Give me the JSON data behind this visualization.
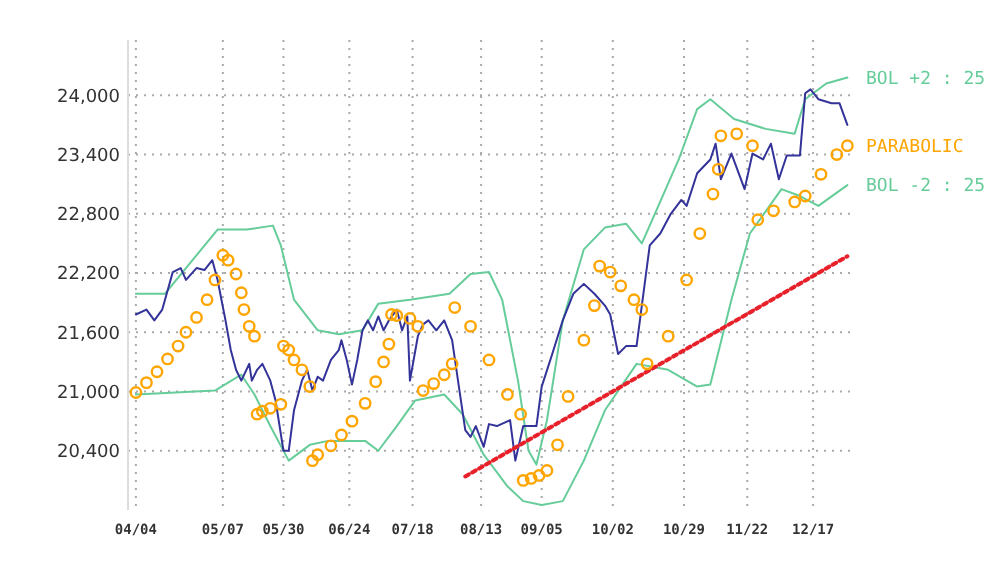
{
  "chart_data": {
    "type": "line",
    "xlim": [
      "--04-01",
      "--12-31"
    ],
    "ylim": [
      19800,
      24560
    ],
    "xticks": [
      {
        "value": "--04-04",
        "label": "04/04"
      },
      {
        "value": "--05-07",
        "label": "05/07"
      },
      {
        "value": "--05-30",
        "label": "05/30"
      },
      {
        "value": "--06-24",
        "label": "06/24"
      },
      {
        "value": "--07-18",
        "label": "07/18"
      },
      {
        "value": "--08-13",
        "label": "08/13"
      },
      {
        "value": "--09-05",
        "label": "09/05"
      },
      {
        "value": "--10-02",
        "label": "10/02"
      },
      {
        "value": "--10-29",
        "label": "10/29"
      },
      {
        "value": "--11-22",
        "label": "11/22"
      },
      {
        "value": "--12-17",
        "label": "12/17"
      }
    ],
    "yticks": [
      {
        "value": 20400,
        "label": "20,400"
      },
      {
        "value": 21000,
        "label": "21,000"
      },
      {
        "value": 21600,
        "label": "21,600"
      },
      {
        "value": 22200,
        "label": "22,200"
      },
      {
        "value": 22800,
        "label": "22,800"
      },
      {
        "value": 23400,
        "label": "23,400"
      },
      {
        "value": 24000,
        "label": "24,000"
      }
    ],
    "grid": true,
    "series": [
      {
        "color": "#66cc99",
        "name": "BOL +2 : 25",
        "x": [
          "--04-04",
          "--04-15",
          "--05-05",
          "--05-16",
          "--05-26",
          "--05-29",
          "--06-03",
          "--06-12",
          "--06-20",
          "--06-29",
          "--07-05",
          "--07-17",
          "--08-01",
          "--08-09",
          "--08-16",
          "--08-21",
          "--08-27",
          "--08-31",
          "--09-03",
          "--09-07",
          "--09-13",
          "--09-21",
          "--09-29",
          "--10-07",
          "--10-13",
          "--10-17",
          "--10-27",
          "--11-03",
          "--11-08",
          "--11-17",
          "--11-29",
          "--12-10",
          "--12-14",
          "--12-22",
          "--12-30"
        ],
        "values": [
          21990,
          21990,
          22640,
          22640,
          22680,
          22480,
          21930,
          21620,
          21580,
          21620,
          21890,
          21930,
          21990,
          22190,
          22210,
          21930,
          21110,
          20400,
          20260,
          20710,
          21720,
          22440,
          22660,
          22700,
          22500,
          22740,
          23350,
          23860,
          23960,
          23760,
          23660,
          23610,
          23960,
          24120,
          24180
        ]
      },
      {
        "color": "#66cc99",
        "name": "BOL -2 : 25",
        "x": [
          "--04-04",
          "--05-04",
          "--05-14",
          "--05-19",
          "--05-25",
          "--06-01",
          "--06-09",
          "--06-16",
          "--06-30",
          "--07-05",
          "--07-12",
          "--07-19",
          "--07-30",
          "--08-06",
          "--08-14",
          "--08-23",
          "--08-29",
          "--09-05",
          "--09-13",
          "--09-21",
          "--09-29",
          "--10-11",
          "--10-23",
          "--11-03",
          "--11-08",
          "--11-16",
          "--11-23",
          "--12-05",
          "--12-12",
          "--12-19",
          "--12-30"
        ],
        "values": [
          20970,
          21010,
          21170,
          20970,
          20650,
          20300,
          20460,
          20500,
          20500,
          20400,
          20650,
          20910,
          20970,
          20770,
          20360,
          20040,
          19890,
          19850,
          19890,
          20300,
          20810,
          21280,
          21220,
          21050,
          21070,
          21930,
          22600,
          23050,
          22980,
          22880,
          23090
        ]
      },
      {
        "color": "#333399",
        "x": [
          "--04-04",
          "--04-08",
          "--04-11",
          "--04-14",
          "--04-18",
          "--04-21",
          "--04-23",
          "--04-27",
          "--04-30",
          "--05-03",
          "--05-05",
          "--05-08",
          "--05-10",
          "--05-12",
          "--05-14",
          "--05-17",
          "--05-18",
          "--05-20",
          "--05-22",
          "--05-25",
          "--05-27",
          "--05-30",
          "--06-01",
          "--06-03",
          "--06-06",
          "--06-08",
          "--06-10",
          "--06-12",
          "--06-14",
          "--06-17",
          "--06-20",
          "--06-21",
          "--06-23",
          "--06-25",
          "--06-27",
          "--06-29",
          "--07-01",
          "--07-03",
          "--07-05",
          "--07-07",
          "--07-09",
          "--07-12",
          "--07-14",
          "--07-16",
          "--07-17",
          "--07-20",
          "--07-22",
          "--07-24",
          "--07-27",
          "--07-30",
          "--08-02",
          "--08-05",
          "--08-07",
          "--08-09",
          "--08-11",
          "--08-14",
          "--08-16",
          "--08-19",
          "--08-24",
          "--08-26",
          "--08-29",
          "--09-03",
          "--09-05",
          "--09-09",
          "--09-13",
          "--09-17",
          "--09-21",
          "--09-25",
          "--09-29",
          "--10-01",
          "--10-04",
          "--10-07",
          "--10-11",
          "--10-13",
          "--10-16",
          "--10-20",
          "--10-24",
          "--10-28",
          "--10-30",
          "--11-03",
          "--11-08",
          "--11-10",
          "--11-12",
          "--11-16",
          "--11-21",
          "--11-24",
          "--11-28",
          "--12-01",
          "--12-04",
          "--12-07",
          "--12-12",
          "--12-14",
          "--12-16",
          "--12-19",
          "--12-24",
          "--12-27",
          "--12-30"
        ],
        "values": [
          21780,
          21830,
          21720,
          21830,
          22210,
          22250,
          22130,
          22250,
          22230,
          22330,
          22130,
          21720,
          21420,
          21220,
          21110,
          21280,
          21110,
          21220,
          21280,
          21110,
          20910,
          20400,
          20400,
          20810,
          21110,
          21220,
          21010,
          21150,
          21110,
          21320,
          21420,
          21520,
          21320,
          21070,
          21320,
          21620,
          21720,
          21620,
          21760,
          21620,
          21720,
          21830,
          21620,
          21760,
          21110,
          21560,
          21680,
          21720,
          21620,
          21720,
          21520,
          20970,
          20610,
          20540,
          20650,
          20440,
          20670,
          20650,
          20710,
          20300,
          20650,
          20650,
          21050,
          21380,
          21720,
          21990,
          22090,
          21990,
          21870,
          21780,
          21380,
          21460,
          21460,
          21870,
          22480,
          22600,
          22800,
          22940,
          22880,
          23210,
          23350,
          23510,
          23150,
          23410,
          23050,
          23410,
          23350,
          23510,
          23150,
          23390,
          23390,
          24020,
          24060,
          23960,
          23920,
          23920,
          23700
        ]
      },
      {
        "color": "#e8202a",
        "line_style": "dotted",
        "x": [
          "--08-07",
          "--12-30"
        ],
        "values": [
          20140,
          22370
        ]
      },
      {
        "type": "scatter",
        "color": "#ffa500",
        "name": "PARABOLIC",
        "marker": "circle",
        "x": [
          "--04-04",
          "--04-08",
          "--04-12",
          "--04-16",
          "--04-20",
          "--04-23",
          "--04-27",
          "--05-01",
          "--05-04",
          "--05-07",
          "--05-09",
          "--05-12",
          "--05-14",
          "--05-15",
          "--05-17",
          "--05-19",
          "--05-20",
          "--05-22",
          "--05-25",
          "--05-29",
          "--05-30",
          "--06-01",
          "--06-03",
          "--06-06",
          "--06-09",
          "--06-10",
          "--06-12",
          "--06-17",
          "--06-21",
          "--06-25",
          "--06-30",
          "--07-04",
          "--07-07",
          "--07-09",
          "--07-10",
          "--07-12",
          "--07-17",
          "--07-20",
          "--07-22",
          "--07-26",
          "--07-30",
          "--08-02",
          "--08-03",
          "--08-09",
          "--08-16",
          "--08-23",
          "--08-28",
          "--08-29",
          "--09-01",
          "--09-04",
          "--09-07",
          "--09-11",
          "--09-15",
          "--09-21",
          "--09-25",
          "--09-27",
          "--10-01",
          "--10-05",
          "--10-10",
          "--10-13",
          "--10-15",
          "--10-23",
          "--10-30",
          "--11-04",
          "--11-09",
          "--11-11",
          "--11-12",
          "--11-18",
          "--11-24",
          "--11-26",
          "--12-02",
          "--12-10",
          "--12-14",
          "--12-20",
          "--12-26",
          "--12-30"
        ],
        "values": [
          20990,
          21090,
          21200,
          21330,
          21460,
          21600,
          21750,
          21930,
          22130,
          22380,
          22330,
          22190,
          22000,
          21830,
          21660,
          21560,
          20770,
          20800,
          20830,
          20870,
          21460,
          21420,
          21320,
          21220,
          21050,
          20300,
          20360,
          20450,
          20560,
          20700,
          20880,
          21100,
          21300,
          21480,
          21780,
          21770,
          21740,
          21660,
          21010,
          21080,
          21170,
          21280,
          21850,
          21660,
          21320,
          20970,
          20770,
          20100,
          20120,
          20150,
          20200,
          20460,
          20950,
          21520,
          21870,
          22270,
          22210,
          22070,
          21930,
          21830,
          21280,
          21560,
          22130,
          22600,
          23000,
          23250,
          23590,
          23610,
          23490,
          22740,
          22830,
          22920,
          22980,
          23200,
          23400,
          23490
        ]
      }
    ]
  }
}
